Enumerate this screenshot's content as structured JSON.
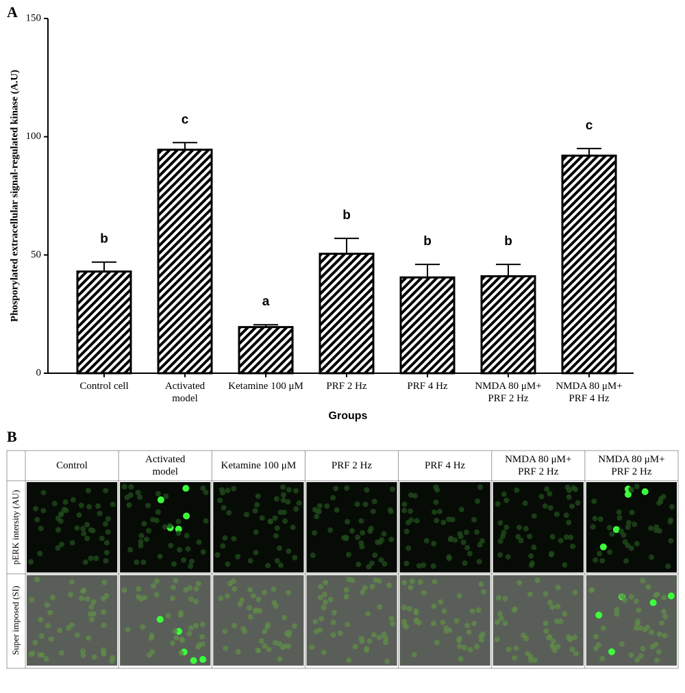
{
  "chart_data": {
    "type": "bar",
    "panel_label": "A",
    "ylabel": "Phosporylated extracellular signal-regulated kinase (A.U)",
    "xlabel": "Groups",
    "categories": [
      "Control cell",
      "Activated\nmodel",
      "Ketamine 100 μM",
      "PRF 2 Hz",
      "PRF 4 Hz",
      "NMDA 80 μM+\nPRF 2 Hz",
      "NMDA 80 μM+\nPRF 4 Hz"
    ],
    "values": [
      43,
      94.5,
      19.5,
      50.5,
      40.5,
      41,
      92
    ],
    "errors": [
      4,
      3,
      1,
      6.5,
      5.5,
      5,
      3
    ],
    "significance": [
      "b",
      "c",
      "a",
      "b",
      "b",
      "b",
      "c"
    ],
    "color": "#000000",
    "ylim": [
      0,
      150
    ],
    "yticks": [
      0,
      50,
      100,
      150
    ]
  },
  "panel_b": {
    "label": "B",
    "columns": [
      "Control",
      "Activated\nmodel",
      "Ketamine 100 μM",
      "PRF 2 Hz",
      "PRF 4 Hz",
      "NMDA 80 μM+\nPRF 2 Hz",
      "NMDA 80 μM+\nPRF 2 Hz"
    ],
    "rows": [
      "pERK intersity (AU)",
      "Super imposed (SI)"
    ]
  }
}
